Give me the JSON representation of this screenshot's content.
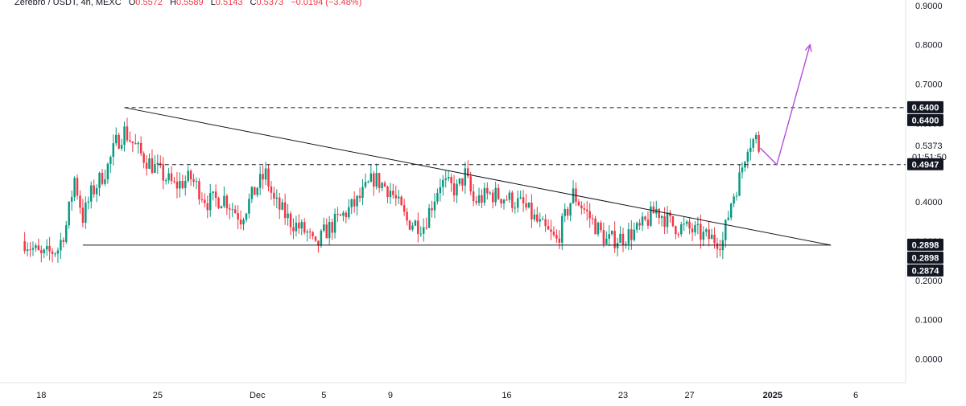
{
  "header": {
    "symbol": "Zerebro / USDT, 4h, MEXC",
    "open_label": "O",
    "open": "0.5572",
    "high_label": "H",
    "high": "0.5589",
    "low_label": "L",
    "low": "0.5143",
    "close_label": "C",
    "close": "0.5373",
    "change": "−0.0194 (−3.48%)"
  },
  "colors": {
    "up": "#089981",
    "down": "#f23645",
    "projection": "#b14fd8",
    "trendline": "#131722",
    "tag_bg": "#131722"
  },
  "chart_data": {
    "type": "candlestick",
    "y_axis": {
      "ticks": [
        "0.9000",
        "0.8000",
        "0.7000",
        "0.6000",
        "0.4000",
        "0.3000",
        "0.2000",
        "0.1000",
        "0.0000"
      ],
      "tick_values": [
        0.9,
        0.8,
        0.7,
        0.6,
        0.4,
        0.3,
        0.2,
        0.1,
        0.0
      ],
      "range": [
        -0.0604,
        0.9139
      ]
    },
    "x_axis": {
      "ticks": [
        "18",
        "25",
        "Dec",
        "5",
        "9",
        "16",
        "23",
        "27",
        "2025",
        "6"
      ],
      "tick_dates": [
        "2024-11-18",
        "2024-11-25",
        "2024-12-01",
        "2024-12-05",
        "2024-12-09",
        "2024-12-16",
        "2024-12-23",
        "2024-12-27",
        "2025-01-01",
        "2025-01-06"
      ],
      "bold_ticks": [
        "2025"
      ],
      "range": [
        "2024-11-16",
        "2025-01-09"
      ]
    },
    "current_price": {
      "value": 0.5373,
      "label": "0.5373",
      "countdown": "01:51:50"
    },
    "price_tags": [
      {
        "label": "0.6400",
        "value": 0.64
      },
      {
        "label": "0.6400",
        "value": 0.64
      },
      {
        "label": "0.4947",
        "value": 0.4947
      },
      {
        "label": "0.2898",
        "value": 0.2898
      },
      {
        "label": "0.2898",
        "value": 0.2898
      },
      {
        "label": "0.2874",
        "value": 0.2874
      }
    ],
    "horizontal_lines": [
      {
        "value": 0.64,
        "style": "dashed",
        "from": "2024-11-23"
      },
      {
        "value": 0.4947,
        "style": "dashed",
        "from": "2024-11-25"
      },
      {
        "value": 0.2898,
        "style": "solid",
        "from": "2024-11-20 12:00",
        "to": "2025-01-04 12:00"
      }
    ],
    "trendlines": [
      {
        "from": [
          "2024-11-23",
          0.64
        ],
        "to": [
          "2025-01-04 12:00",
          0.2898
        ]
      }
    ],
    "projection": [
      [
        "2024-12-31 06:00",
        0.5373
      ],
      [
        "2025-01-01 06:00",
        0.4947
      ],
      [
        "2025-01-03 06:00",
        0.8
      ]
    ],
    "candle_interval_hours": 4,
    "candle_start": "2024-11-17 00:00",
    "candle_close_path": [
      [
        "2024-11-17 00:00",
        0.3
      ],
      [
        "2024-11-18 00:00",
        0.26
      ],
      [
        "2024-11-19 00:00",
        0.28
      ],
      [
        "2024-11-19 12:00",
        0.34
      ],
      [
        "2024-11-20 00:00",
        0.46
      ],
      [
        "2024-11-20 12:00",
        0.36
      ],
      [
        "2024-11-21 00:00",
        0.42
      ],
      [
        "2024-11-22 00:00",
        0.49
      ],
      [
        "2024-11-22 12:00",
        0.55
      ],
      [
        "2024-11-23 00:00",
        0.58
      ],
      [
        "2024-11-23 12:00",
        0.55
      ],
      [
        "2024-11-24 00:00",
        0.52
      ],
      [
        "2024-11-25 00:00",
        0.48
      ],
      [
        "2024-11-26 00:00",
        0.44
      ],
      [
        "2024-11-27 00:00",
        0.46
      ],
      [
        "2024-11-28 00:00",
        0.4
      ],
      [
        "2024-11-29 00:00",
        0.41
      ],
      [
        "2024-11-30 00:00",
        0.36
      ],
      [
        "2024-12-01 00:00",
        0.44
      ],
      [
        "2024-12-01 12:00",
        0.47
      ],
      [
        "2024-12-02 00:00",
        0.4
      ],
      [
        "2024-12-03 00:00",
        0.35
      ],
      [
        "2024-12-04 00:00",
        0.32
      ],
      [
        "2024-12-04 12:00",
        0.28
      ],
      [
        "2024-12-05 00:00",
        0.32
      ],
      [
        "2024-12-06 00:00",
        0.36
      ],
      [
        "2024-12-07 00:00",
        0.4
      ],
      [
        "2024-12-08 00:00",
        0.46
      ],
      [
        "2024-12-09 00:00",
        0.43
      ],
      [
        "2024-12-10 00:00",
        0.35
      ],
      [
        "2024-12-11 00:00",
        0.34
      ],
      [
        "2024-12-12 00:00",
        0.45
      ],
      [
        "2024-12-13 00:00",
        0.43
      ],
      [
        "2024-12-13 12:00",
        0.47
      ],
      [
        "2024-12-14 00:00",
        0.4
      ],
      [
        "2024-12-15 00:00",
        0.42
      ],
      [
        "2024-12-16 00:00",
        0.41
      ],
      [
        "2024-12-17 00:00",
        0.39
      ],
      [
        "2024-12-18 00:00",
        0.34
      ],
      [
        "2024-12-19 00:00",
        0.3
      ],
      [
        "2024-12-20 00:00",
        0.42
      ],
      [
        "2024-12-21 00:00",
        0.36
      ],
      [
        "2024-12-22 00:00",
        0.3
      ],
      [
        "2024-12-23 00:00",
        0.31
      ],
      [
        "2024-12-24 00:00",
        0.33
      ],
      [
        "2024-12-25 00:00",
        0.38
      ],
      [
        "2024-12-26 00:00",
        0.34
      ],
      [
        "2024-12-27 00:00",
        0.33
      ],
      [
        "2024-12-28 00:00",
        0.31
      ],
      [
        "2024-12-29 00:00",
        0.3
      ],
      [
        "2024-12-29 12:00",
        0.4
      ],
      [
        "2024-12-30 00:00",
        0.46
      ],
      [
        "2024-12-30 12:00",
        0.55
      ],
      [
        "2024-12-31 00:00",
        0.56
      ],
      [
        "2024-12-31 04:00",
        0.5373
      ]
    ]
  }
}
